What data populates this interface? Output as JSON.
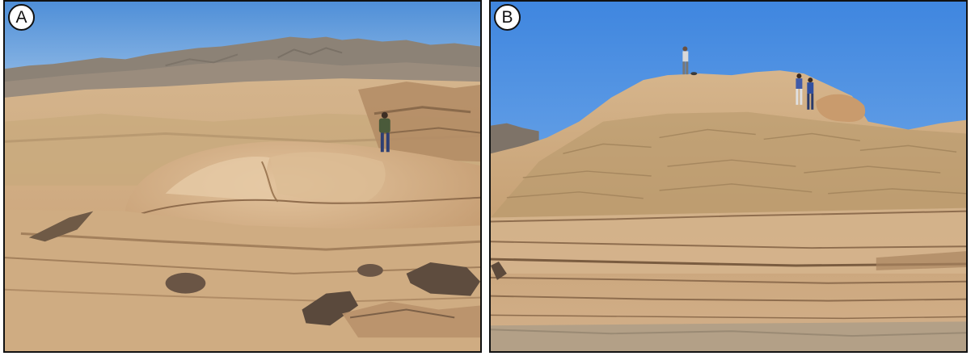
{
  "figure": {
    "panels": [
      {
        "letter": "A",
        "scene": "sandstone-outcrop-with-person-standing"
      },
      {
        "letter": "B",
        "scene": "layered-sandstone-hill-with-people-on-top"
      }
    ]
  },
  "colors": {
    "sky_top": "#4f8fd8",
    "sky_bottom": "#9cc3ea",
    "mountain": "#8a7f73",
    "sandstone_light": "#d7b48b",
    "sandstone_mid": "#c59d72",
    "sandstone_dark": "#9e7a55",
    "shadow": "#7a5e43",
    "rock_dark": "#5c4a3c",
    "border": "#111111"
  }
}
